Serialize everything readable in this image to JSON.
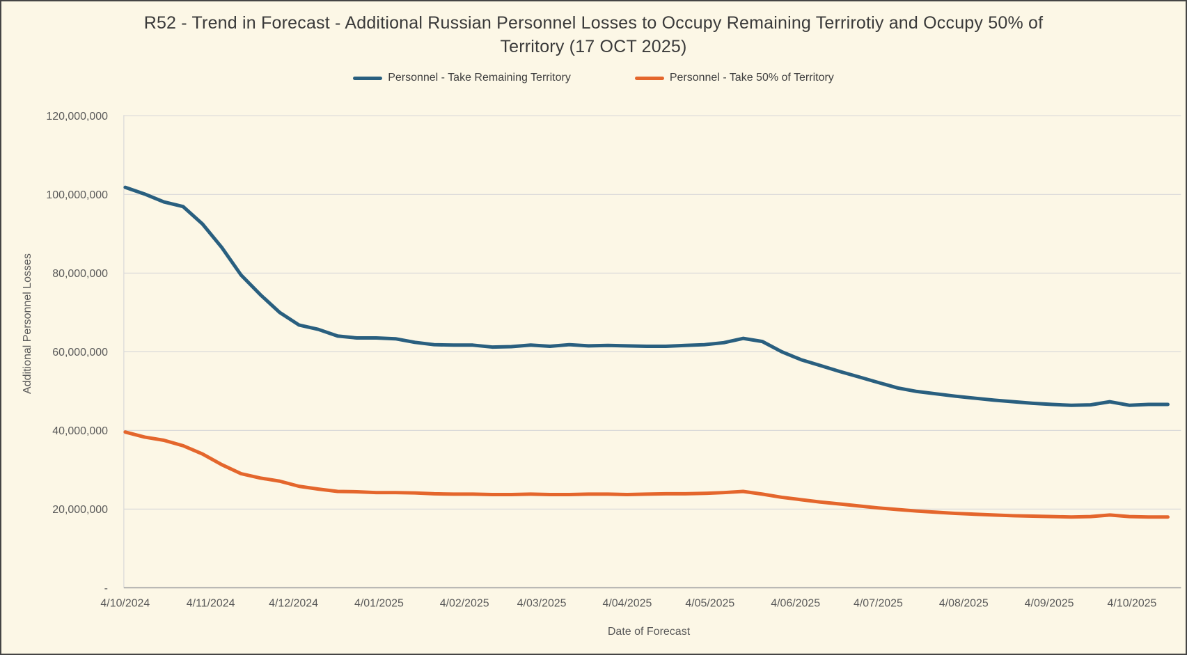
{
  "chart": {
    "title": "R52 - Trend in Forecast - Additional Russian Personnel Losses to Occupy Remaining Terrirotiy and Occupy 50% of Territory (17 OCT 2025)",
    "title_lines": [
      "R52 - Trend in Forecast - Additional Russian Personnel Losses to Occupy Remaining Terrirotiy and Occupy 50% of",
      "Territory  (17 OCT 2025)"
    ],
    "legend": [
      {
        "label": "Personnel - Take Remaining Territory",
        "color": "#295F7F"
      },
      {
        "label": "Personnel - Take 50% of Territory",
        "color": "#E4662C"
      }
    ],
    "y_axis_title": "Additional Personnel Losses",
    "x_axis_title": "Date of Forecast"
  },
  "chart_data": {
    "type": "line",
    "title": "R52 - Trend in Forecast - Additional Russian Personnel Losses to Occupy Remaining Terrirotiy and Occupy 50% of Territory (17 OCT 2025)",
    "legend_position": "top",
    "grid": true,
    "x": {
      "label": "Date of Forecast",
      "tick_labels": [
        "4/10/2024",
        "4/11/2024",
        "4/12/2024",
        "4/01/2025",
        "4/02/2025",
        "4/03/2025",
        "4/04/2025",
        "4/05/2025",
        "4/06/2025",
        "4/07/2025",
        "4/08/2025",
        "4/09/2025",
        "4/10/2025"
      ],
      "tick_day_offsets": [
        0,
        31,
        61,
        92,
        123,
        151,
        182,
        212,
        243,
        273,
        304,
        335,
        365
      ],
      "total_days": 378,
      "point_interval_days": 7
    },
    "y": {
      "label": "Additional Personnel Losses",
      "min": 0,
      "max": 120000000,
      "tick_interval": 20000000,
      "tick_labels": [
        "-",
        "20,000,000",
        "40,000,000",
        "60,000,000",
        "80,000,000",
        "100,000,000",
        "120,000,000"
      ]
    },
    "series": [
      {
        "name": "Personnel - Take Remaining Territory",
        "color": "#295F7F",
        "values": [
          101800000,
          100100000,
          98100000,
          96900000,
          92500000,
          86500000,
          79500000,
          74500000,
          70000000,
          66800000,
          65700000,
          64000000,
          63500000,
          63500000,
          63300000,
          62400000,
          61800000,
          61700000,
          61700000,
          61200000,
          61300000,
          61700000,
          61400000,
          61800000,
          61500000,
          61600000,
          61500000,
          61400000,
          61400000,
          61600000,
          61800000,
          62300000,
          63400000,
          62600000,
          60000000,
          58000000,
          56500000,
          55000000,
          53600000,
          52200000,
          50800000,
          49900000,
          49300000,
          48700000,
          48200000,
          47700000,
          47300000,
          46900000,
          46600000,
          46400000,
          46500000,
          47300000,
          46400000,
          46600000,
          46600000
        ]
      },
      {
        "name": "Personnel - Take 50% of Territory",
        "color": "#E4662C",
        "values": [
          39600000,
          38300000,
          37500000,
          36100000,
          34000000,
          31300000,
          29000000,
          27900000,
          27100000,
          25800000,
          25100000,
          24500000,
          24400000,
          24200000,
          24200000,
          24100000,
          23900000,
          23800000,
          23800000,
          23700000,
          23700000,
          23800000,
          23700000,
          23700000,
          23800000,
          23800000,
          23700000,
          23800000,
          23900000,
          23900000,
          24000000,
          24200000,
          24500000,
          23800000,
          23000000,
          22400000,
          21800000,
          21300000,
          20800000,
          20300000,
          19900000,
          19500000,
          19200000,
          18900000,
          18700000,
          18500000,
          18300000,
          18200000,
          18100000,
          18000000,
          18100000,
          18500000,
          18100000,
          18000000,
          18000000
        ]
      }
    ]
  },
  "colors": {
    "background": "#FCF7E6",
    "frame_border": "#454545",
    "gridline": "#D9D9D9",
    "zero_axis_line": "#A6A6A6",
    "tick_text": "#595959",
    "title_text": "#3A3A3A",
    "legend_text": "#404040"
  }
}
